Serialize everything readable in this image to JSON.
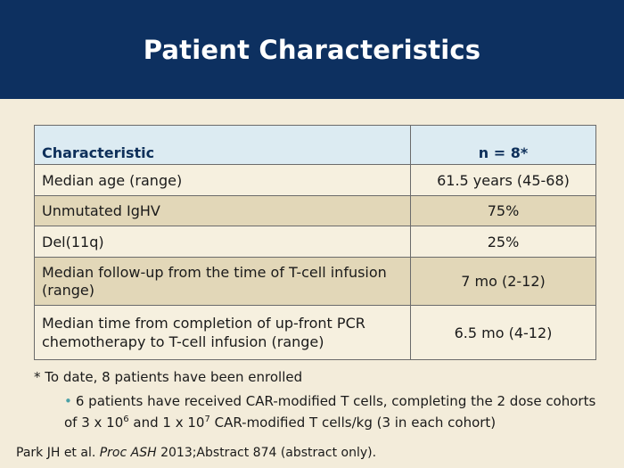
{
  "title": "Patient Characteristics",
  "table": {
    "headers": [
      "Characteristic",
      "n = 8*"
    ],
    "rows": [
      {
        "label": "Median age (range)",
        "value": "61.5 years (45-68)"
      },
      {
        "label": "Unmutated IgHV",
        "value": "75%"
      },
      {
        "label": "Del(11q)",
        "value": "25%"
      },
      {
        "label": "Median follow-up from the time of T-cell infusion (range)",
        "value": "7 mo (2-12)"
      },
      {
        "label": "Median time from completion of up-front PCR chemotherapy to T-cell infusion (range)",
        "value": "6.5 mo (4-12)"
      }
    ]
  },
  "footnote": "* To date, 8 patients have been enrolled",
  "bullet": {
    "part1": "6 patients have received CAR-modified T cells, completing the 2 dose cohorts of 3 x 10",
    "exp1": "6",
    "part2": " and 1 x 10",
    "exp2": "7",
    "part3": " CAR-modified T cells/kg (3 in each cohort)"
  },
  "citation": {
    "authors": "Park JH et al. ",
    "journal": "Proc ASH",
    "rest": " 2013;Abstract 874 (abstract only)."
  }
}
